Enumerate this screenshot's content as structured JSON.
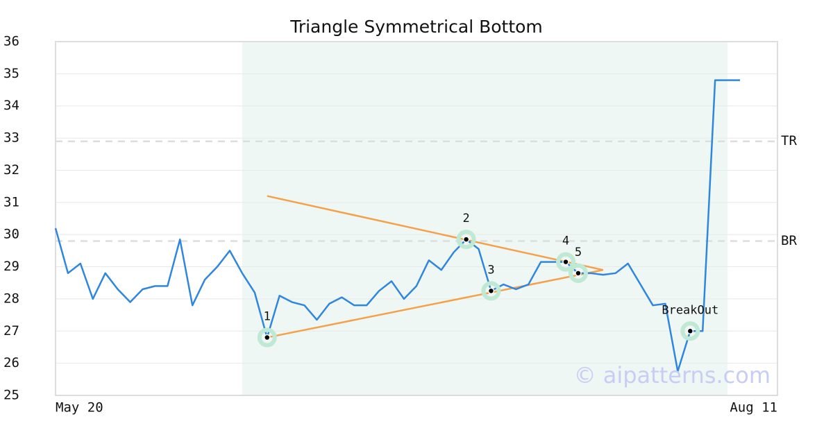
{
  "chart_data": {
    "type": "line",
    "title": "Triangle Symmetrical Bottom",
    "categories": [
      "May 20",
      null,
      null,
      null,
      null,
      null,
      null,
      null,
      null,
      null,
      null,
      null,
      null,
      null,
      null,
      null,
      null,
      null,
      null,
      null,
      null,
      null,
      null,
      null,
      null,
      null,
      null,
      null,
      null,
      null,
      null,
      null,
      null,
      null,
      null,
      null,
      null,
      null,
      null,
      null,
      null,
      null,
      null,
      null,
      null,
      null,
      null,
      null,
      null,
      null,
      null,
      null,
      null,
      null,
      null,
      "Aug 11"
    ],
    "series": [
      {
        "color": "#2e86de",
        "values": [
          30.2,
          28.8,
          29.1,
          28.0,
          28.8,
          28.3,
          27.9,
          28.3,
          28.4,
          28.4,
          29.85,
          27.8,
          28.6,
          29.0,
          29.5,
          28.8,
          28.2,
          26.8,
          28.1,
          27.9,
          27.8,
          27.35,
          27.85,
          28.05,
          27.8,
          27.8,
          28.25,
          28.55,
          28.0,
          28.4,
          29.2,
          28.9,
          29.45,
          29.85,
          29.55,
          28.25,
          28.45,
          28.3,
          28.45,
          29.15,
          29.15,
          29.15,
          28.8,
          28.8,
          28.75,
          28.8,
          29.1,
          28.45,
          27.8,
          27.85,
          25.75,
          27.0,
          27.0,
          34.8,
          34.8,
          34.8
        ]
      }
    ],
    "points": [
      {
        "label": "1",
        "x": 17,
        "value": 26.8
      },
      {
        "label": "2",
        "x": 33,
        "value": 29.85
      },
      {
        "label": "3",
        "x": 35,
        "value": 28.25
      },
      {
        "label": "4",
        "x": 41,
        "value": 29.15
      },
      {
        "label": "5",
        "x": 42,
        "value": 28.8
      },
      {
        "label": "BreakOut",
        "x": 51,
        "value": 27.0
      }
    ],
    "trendlines": [
      {
        "color": "#f5a04a",
        "x": [
          17,
          44
        ],
        "values": [
          31.2,
          28.9
        ]
      },
      {
        "color": "#f5a04a",
        "x": [
          17,
          44
        ],
        "values": [
          26.8,
          28.9
        ]
      }
    ],
    "levels": [
      {
        "label": "TR",
        "value": 32.9
      },
      {
        "label": "BR",
        "value": 29.8
      }
    ],
    "highlight_range": [
      15,
      54
    ],
    "watermark": "© aipatterns.com",
    "ylim": [
      25,
      36
    ],
    "yticks": [
      25,
      26,
      27,
      28,
      29,
      30,
      31,
      32,
      33,
      34,
      35,
      36
    ],
    "grid": true
  }
}
